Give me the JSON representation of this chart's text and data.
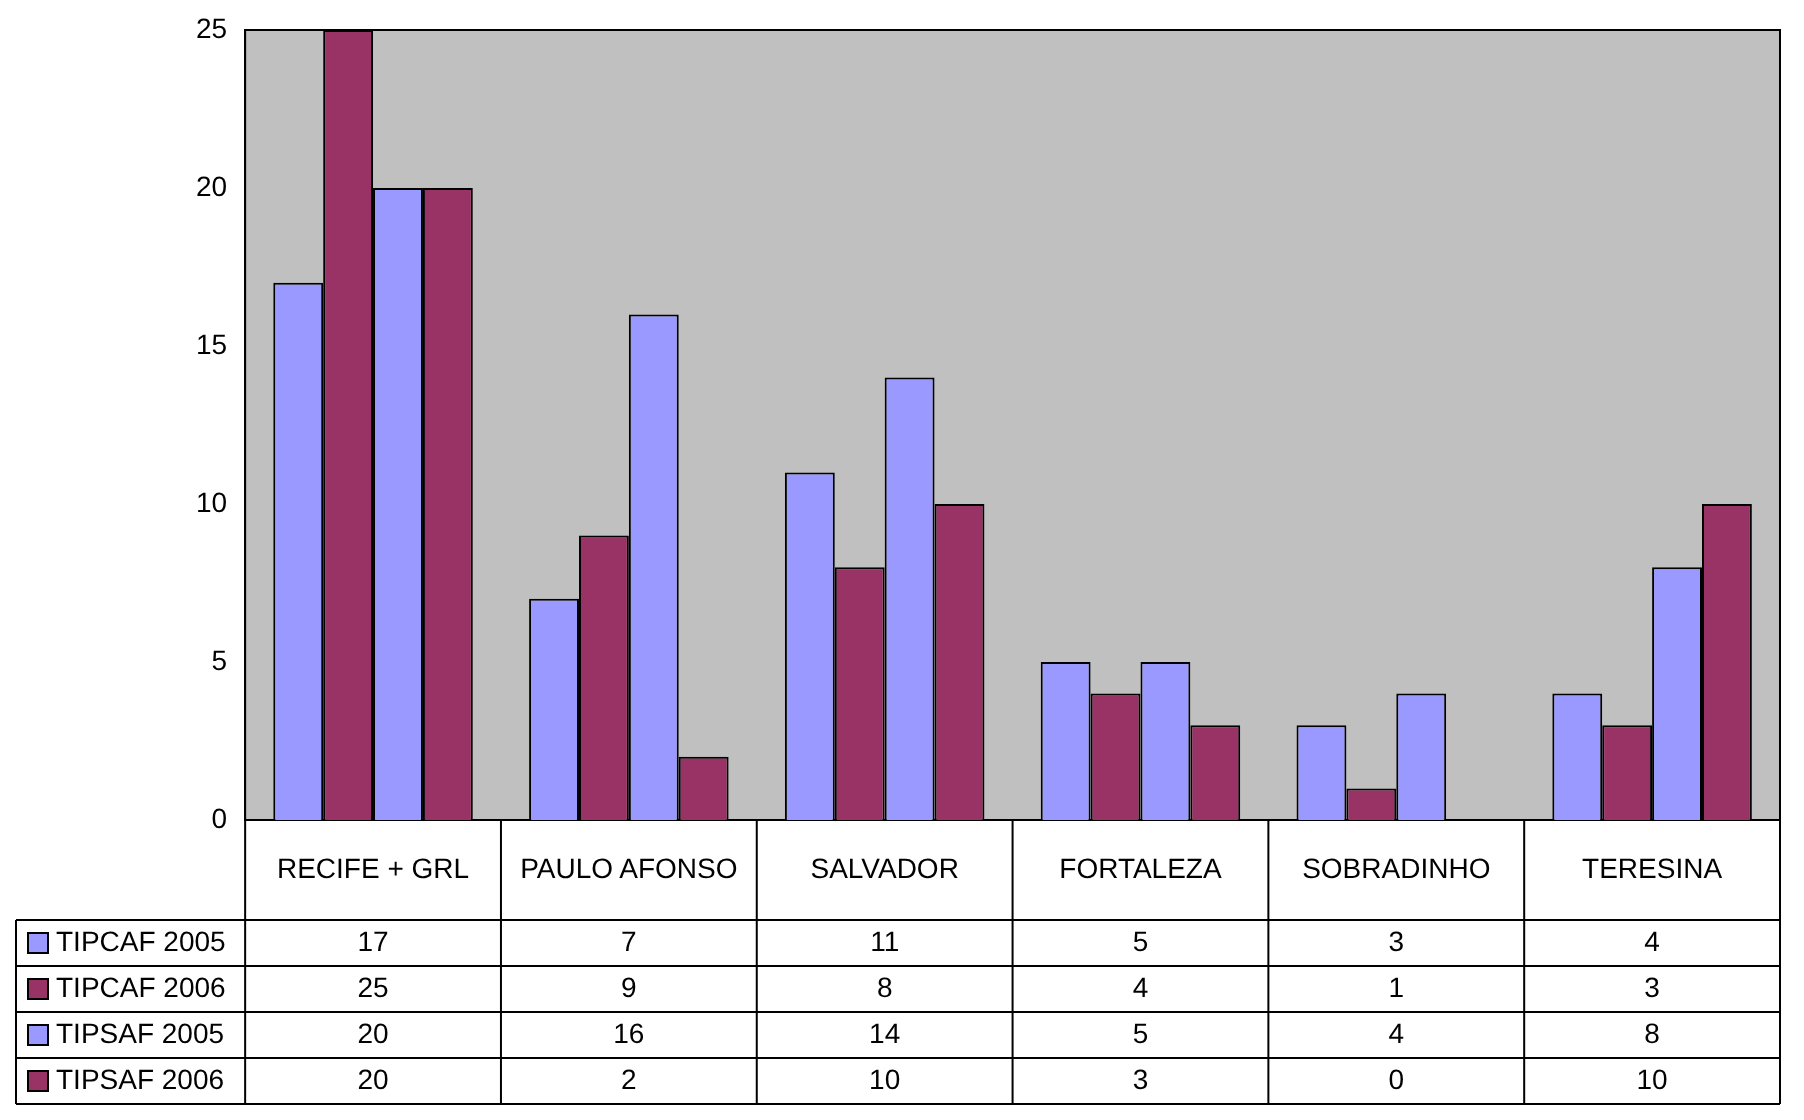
{
  "chart_data": {
    "type": "bar",
    "categories": [
      "RECIFE + GRL",
      "PAULO AFONSO",
      "SALVADOR",
      "FORTALEZA",
      "SOBRADINHO",
      "TERESINA"
    ],
    "series": [
      {
        "name": "TIPCAF 2005",
        "color": "#9999ff",
        "values": [
          17,
          7,
          11,
          5,
          3,
          4
        ]
      },
      {
        "name": "TIPCAF 2006",
        "color": "#993366",
        "values": [
          25,
          9,
          8,
          4,
          1,
          3
        ]
      },
      {
        "name": "TIPSAF 2005",
        "color": "#9999ff",
        "values": [
          20,
          16,
          14,
          5,
          4,
          8
        ]
      },
      {
        "name": "TIPSAF 2006",
        "color": "#993366",
        "values": [
          20,
          2,
          10,
          3,
          0,
          10
        ]
      }
    ],
    "ylim": [
      0,
      25
    ],
    "yticks": [
      0,
      5,
      10,
      15,
      20,
      25
    ],
    "grid": false,
    "legend": "bottom left",
    "data_labels": true
  }
}
